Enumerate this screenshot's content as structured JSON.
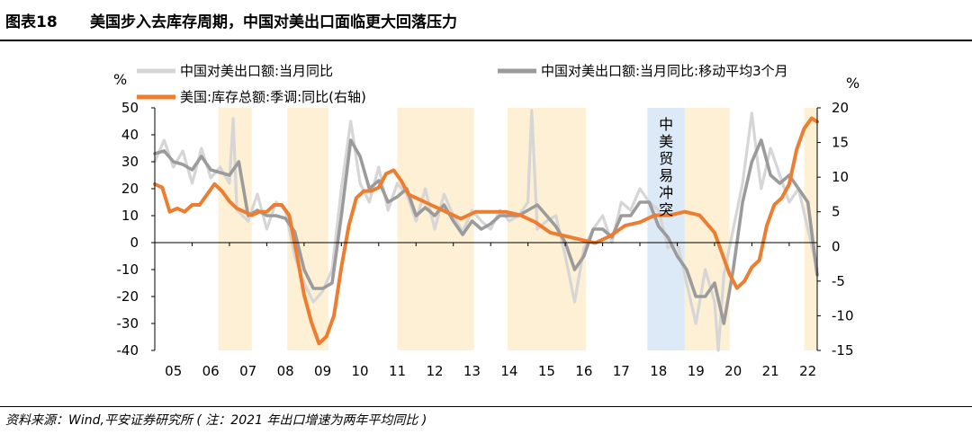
{
  "figure": {
    "label": "图表18",
    "title": "美国步入去库存周期，中国对美出口面临更大回落压力"
  },
  "source": "资料来源：Wind,平安证券研究所 ( 注：2021 年出口增速为两年平均同比 )",
  "colors": {
    "raw": "#d6d6d6",
    "ma3": "#9b9b9b",
    "inventory": "#ed7d31",
    "band_beige": "#fdf0d5",
    "band_blue": "#dce9f7"
  },
  "chart_data": {
    "type": "line",
    "left_axis": {
      "unit": "%",
      "range": [
        -40,
        50
      ],
      "ticks": [
        50,
        40,
        30,
        20,
        10,
        0,
        -10,
        -20,
        -30,
        -40
      ]
    },
    "right_axis": {
      "unit": "%",
      "range": [
        -15,
        20
      ],
      "ticks": [
        20,
        15,
        10,
        5,
        0,
        -5,
        -10,
        -15
      ]
    },
    "x_axis": {
      "range": [
        2005.0,
        2022.75
      ],
      "tick_labels": [
        "05",
        "06",
        "07",
        "08",
        "09",
        "10",
        "11",
        "12",
        "13",
        "14",
        "15",
        "16",
        "17",
        "18",
        "19",
        "20",
        "21",
        "22"
      ]
    },
    "annotation": "中美贸易冲突",
    "shaded_periods": [
      {
        "start": 2006.7,
        "end": 2007.6,
        "kind": "destock"
      },
      {
        "start": 2008.55,
        "end": 2009.65,
        "kind": "destock"
      },
      {
        "start": 2011.5,
        "end": 2013.55,
        "kind": "destock"
      },
      {
        "start": 2014.45,
        "end": 2016.55,
        "kind": "destock"
      },
      {
        "start": 2018.2,
        "end": 2019.2,
        "kind": "trade-war"
      },
      {
        "start": 2019.2,
        "end": 2020.4,
        "kind": "destock"
      },
      {
        "start": 2022.4,
        "end": 2022.75,
        "kind": "destock"
      }
    ],
    "series": [
      {
        "name": "中国对美出口额:当月同比",
        "axis": "left",
        "x": [
          2005.0,
          2005.25,
          2005.5,
          2005.75,
          2006.0,
          2006.25,
          2006.5,
          2006.75,
          2007.0,
          2007.1,
          2007.2,
          2007.5,
          2007.75,
          2008.0,
          2008.25,
          2008.5,
          2008.75,
          2009.0,
          2009.25,
          2009.5,
          2009.75,
          2010.0,
          2010.25,
          2010.5,
          2010.75,
          2011.0,
          2011.25,
          2011.5,
          2011.75,
          2012.0,
          2012.25,
          2012.5,
          2012.75,
          2013.0,
          2013.25,
          2013.5,
          2013.75,
          2014.0,
          2014.25,
          2014.5,
          2014.75,
          2015.0,
          2015.1,
          2015.25,
          2015.5,
          2015.75,
          2016.0,
          2016.25,
          2016.5,
          2016.75,
          2017.0,
          2017.25,
          2017.5,
          2017.75,
          2018.0,
          2018.25,
          2018.5,
          2018.75,
          2019.0,
          2019.25,
          2019.5,
          2019.75,
          2020.0,
          2020.1,
          2020.25,
          2020.5,
          2020.75,
          2021.0,
          2021.15,
          2021.25,
          2021.5,
          2021.75,
          2022.0,
          2022.25,
          2022.5,
          2022.75
        ],
        "y": [
          30,
          38,
          28,
          34,
          22,
          35,
          24,
          28,
          22,
          46,
          12,
          8,
          18,
          5,
          15,
          12,
          -5,
          -15,
          -22,
          -18,
          -10,
          20,
          45,
          22,
          15,
          28,
          12,
          22,
          18,
          8,
          20,
          5,
          18,
          10,
          4,
          12,
          8,
          5,
          12,
          8,
          10,
          15,
          49,
          5,
          8,
          10,
          -5,
          -22,
          -2,
          5,
          10,
          0,
          15,
          12,
          20,
          15,
          12,
          -2,
          0,
          -15,
          -30,
          -10,
          -22,
          -40,
          -12,
          5,
          22,
          48,
          30,
          20,
          35,
          25,
          15,
          20,
          5,
          -10
        ]
      },
      {
        "name": "中国对美出口额:当月同比:移动平均3个月",
        "axis": "left",
        "x": [
          2005.0,
          2005.25,
          2005.5,
          2005.75,
          2006.0,
          2006.25,
          2006.5,
          2006.75,
          2007.0,
          2007.25,
          2007.5,
          2007.75,
          2008.0,
          2008.25,
          2008.5,
          2008.75,
          2009.0,
          2009.25,
          2009.5,
          2009.75,
          2010.0,
          2010.25,
          2010.5,
          2010.75,
          2011.0,
          2011.25,
          2011.5,
          2011.75,
          2012.0,
          2012.25,
          2012.5,
          2012.75,
          2013.0,
          2013.25,
          2013.5,
          2013.75,
          2014.0,
          2014.25,
          2014.5,
          2014.75,
          2015.0,
          2015.25,
          2015.5,
          2015.75,
          2016.0,
          2016.25,
          2016.5,
          2016.75,
          2017.0,
          2017.25,
          2017.5,
          2017.75,
          2018.0,
          2018.25,
          2018.5,
          2018.75,
          2019.0,
          2019.25,
          2019.5,
          2019.75,
          2020.0,
          2020.25,
          2020.5,
          2020.75,
          2021.0,
          2021.25,
          2021.5,
          2021.75,
          2022.0,
          2022.25,
          2022.5,
          2022.75
        ],
        "y": [
          33,
          34,
          30,
          29,
          27,
          32,
          27,
          26,
          25,
          30,
          10,
          12,
          10,
          10,
          9,
          4,
          -10,
          -17,
          -17,
          -15,
          10,
          38,
          32,
          20,
          23,
          15,
          17,
          20,
          10,
          13,
          10,
          14,
          8,
          3,
          8,
          5,
          7,
          10,
          10,
          10,
          12,
          14,
          10,
          6,
          0,
          -10,
          -5,
          5,
          5,
          2,
          10,
          10,
          15,
          15,
          6,
          2,
          -5,
          -10,
          -20,
          -20,
          -15,
          -30,
          -10,
          15,
          30,
          38,
          25,
          22,
          25,
          20,
          15,
          -12
        ]
      },
      {
        "name": "美国:库存总额:季调:同比(右轴)",
        "axis": "right",
        "x": [
          2005.0,
          2005.2,
          2005.4,
          2005.6,
          2005.8,
          2006.0,
          2006.2,
          2006.4,
          2006.6,
          2006.8,
          2007.0,
          2007.2,
          2007.4,
          2007.6,
          2007.8,
          2008.0,
          2008.2,
          2008.4,
          2008.6,
          2008.8,
          2009.0,
          2009.2,
          2009.4,
          2009.6,
          2009.8,
          2010.0,
          2010.2,
          2010.4,
          2010.6,
          2010.8,
          2011.0,
          2011.2,
          2011.4,
          2011.6,
          2011.8,
          2012.0,
          2012.4,
          2012.8,
          2013.2,
          2013.6,
          2014.0,
          2014.4,
          2014.8,
          2015.2,
          2015.6,
          2016.0,
          2016.4,
          2016.8,
          2017.2,
          2017.6,
          2018.0,
          2018.4,
          2018.8,
          2019.2,
          2019.6,
          2020.0,
          2020.2,
          2020.4,
          2020.6,
          2020.8,
          2021.0,
          2021.2,
          2021.4,
          2021.6,
          2021.8,
          2022.0,
          2022.2,
          2022.4,
          2022.6,
          2022.75
        ],
        "y": [
          9,
          8.5,
          5,
          5.5,
          5,
          6,
          6,
          7.5,
          9,
          8,
          6.5,
          5.5,
          5,
          4.5,
          5,
          5,
          6,
          6,
          4.5,
          -1,
          -7,
          -11,
          -14,
          -13,
          -10,
          -3,
          3,
          7,
          8,
          8,
          8.5,
          10.5,
          11,
          9.5,
          7.5,
          7,
          6,
          5,
          4,
          5,
          5,
          5,
          4.5,
          3.5,
          2,
          1.5,
          1,
          0.5,
          1.5,
          3,
          3.5,
          4.5,
          4.5,
          5,
          4.5,
          2,
          -1,
          -4,
          -6,
          -5,
          -3,
          -2,
          3,
          6,
          7,
          9,
          14,
          17,
          18.5,
          18
        ]
      }
    ]
  }
}
